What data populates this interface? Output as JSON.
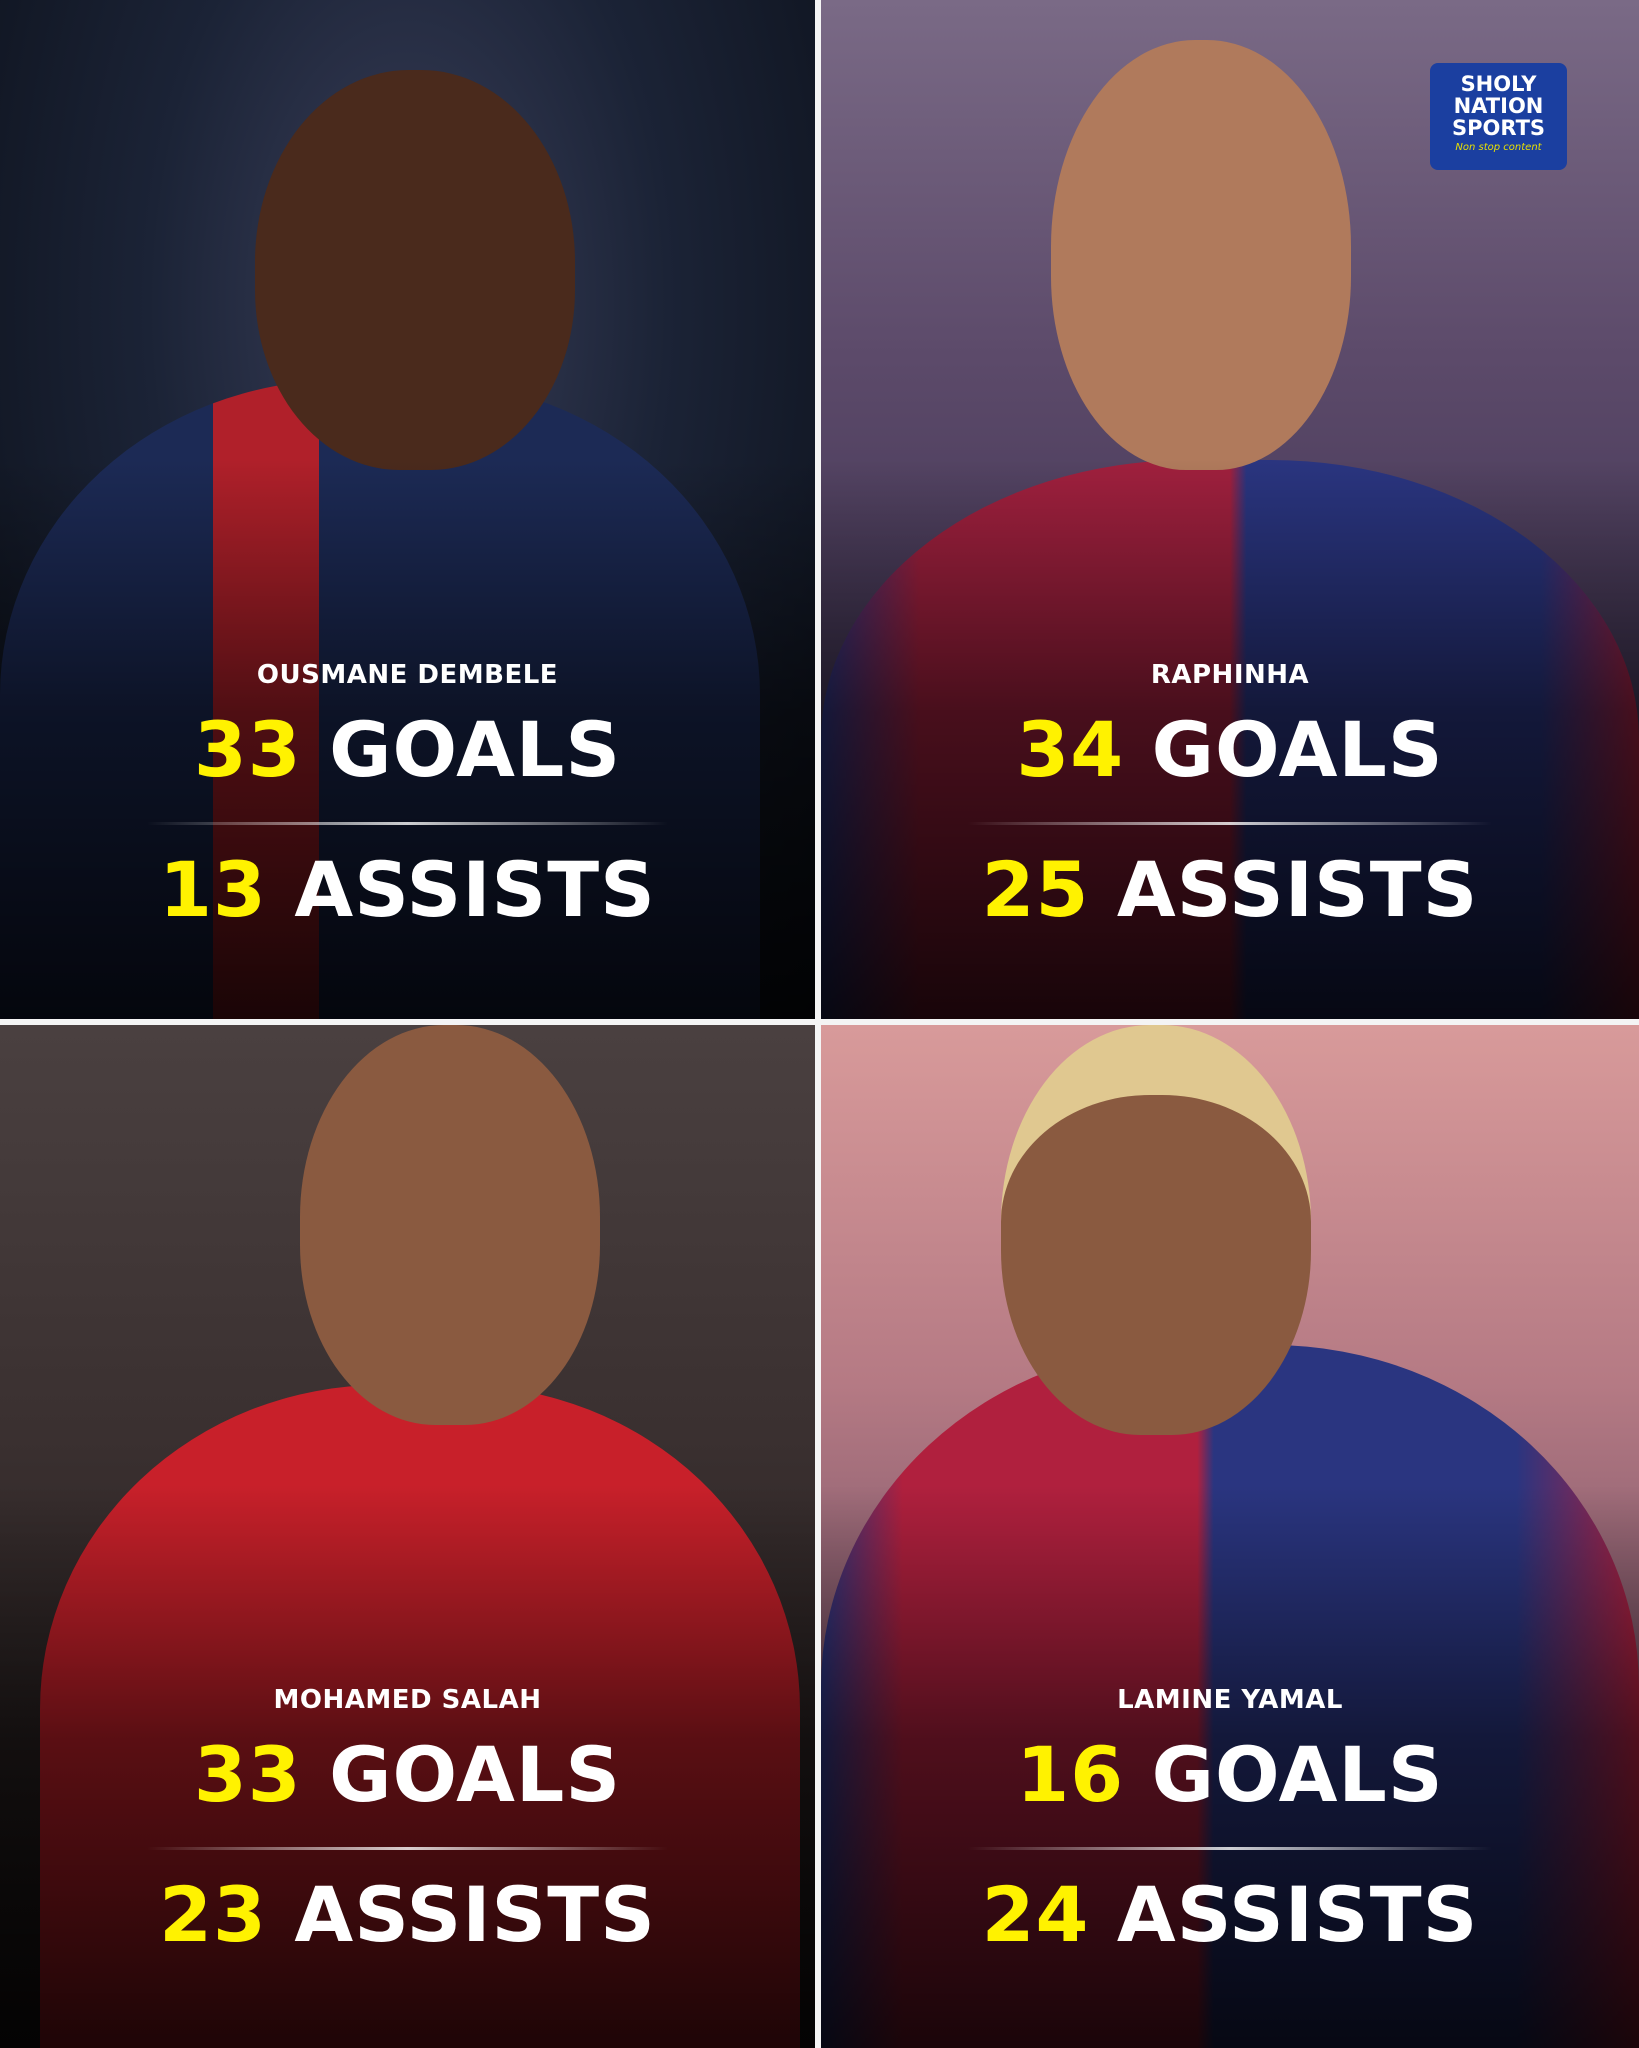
{
  "brand": {
    "line1": "SHOLY",
    "line2": "NATION",
    "line3": "SPORTS",
    "tagline": "Non stop content"
  },
  "colors": {
    "number": "#fff200",
    "text": "#ffffff",
    "logo_bg": "#1b3fa0"
  },
  "players": [
    {
      "name": "OUSMANE DEMBELE",
      "goals": "33",
      "goals_label": "GOALS",
      "assists": "13",
      "assists_label": "ASSISTS"
    },
    {
      "name": "RAPHINHA",
      "goals": "34",
      "goals_label": "GOALS",
      "assists": "25",
      "assists_label": "ASSISTS"
    },
    {
      "name": "MOHAMED SALAH",
      "goals": "33",
      "goals_label": "GOALS",
      "assists": "23",
      "assists_label": "ASSISTS"
    },
    {
      "name": "LAMINE YAMAL",
      "goals": "16",
      "goals_label": "GOALS",
      "assists": "24",
      "assists_label": "ASSISTS"
    }
  ]
}
